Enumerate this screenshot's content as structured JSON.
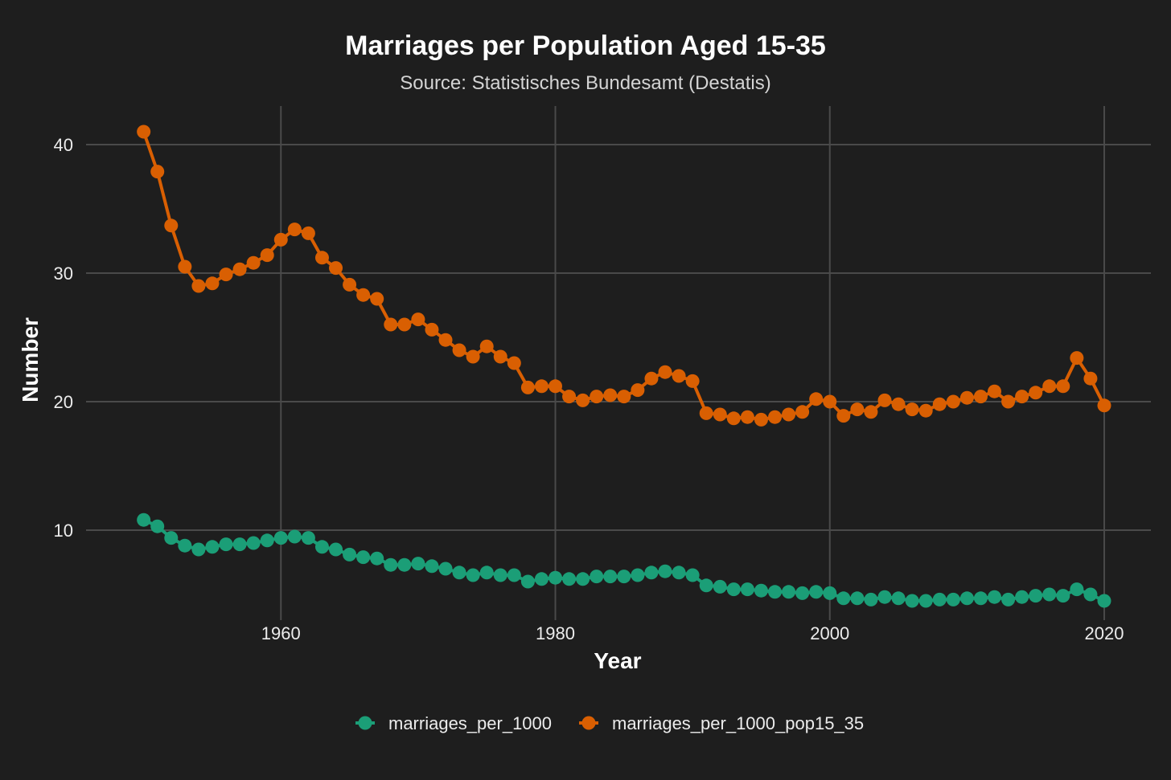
{
  "chart_data": {
    "type": "line",
    "title": "Marriages per Population Aged 15-35",
    "subtitle": "Source: Statistisches Bundesamt (Destatis)",
    "xlabel": "Year",
    "ylabel": "Number",
    "xlim": [
      1945.8,
      2023.4
    ],
    "ylim": [
      3,
      43
    ],
    "x_ticks": [
      1960,
      1980,
      2000,
      2020
    ],
    "y_ticks": [
      10,
      20,
      30,
      40
    ],
    "grid": true,
    "legend_position": "bottom",
    "x": [
      1950,
      1951,
      1952,
      1953,
      1954,
      1955,
      1956,
      1957,
      1958,
      1959,
      1960,
      1961,
      1962,
      1963,
      1964,
      1965,
      1966,
      1967,
      1968,
      1969,
      1970,
      1971,
      1972,
      1973,
      1974,
      1975,
      1976,
      1977,
      1978,
      1979,
      1980,
      1981,
      1982,
      1983,
      1984,
      1985,
      1986,
      1987,
      1988,
      1989,
      1990,
      1991,
      1992,
      1993,
      1994,
      1995,
      1996,
      1997,
      1998,
      1999,
      2000,
      2001,
      2002,
      2003,
      2004,
      2005,
      2006,
      2007,
      2008,
      2009,
      2010,
      2011,
      2012,
      2013,
      2014,
      2015,
      2016,
      2017,
      2018,
      2019,
      2020
    ],
    "series": [
      {
        "name": "marriages_per_1000",
        "color": "#1b9e77",
        "values": [
          10.8,
          10.3,
          9.4,
          8.8,
          8.5,
          8.7,
          8.9,
          8.9,
          9.0,
          9.2,
          9.4,
          9.5,
          9.4,
          8.7,
          8.5,
          8.1,
          7.9,
          7.8,
          7.3,
          7.3,
          7.4,
          7.2,
          7.0,
          6.7,
          6.5,
          6.7,
          6.5,
          6.5,
          6.0,
          6.2,
          6.3,
          6.2,
          6.2,
          6.4,
          6.4,
          6.4,
          6.5,
          6.7,
          6.8,
          6.7,
          6.5,
          5.7,
          5.6,
          5.4,
          5.4,
          5.3,
          5.2,
          5.2,
          5.1,
          5.2,
          5.1,
          4.7,
          4.7,
          4.6,
          4.8,
          4.7,
          4.5,
          4.5,
          4.6,
          4.6,
          4.7,
          4.7,
          4.8,
          4.6,
          4.8,
          4.9,
          5.0,
          4.9,
          5.4,
          5.0,
          4.5
        ]
      },
      {
        "name": "marriages_per_1000_pop15_35",
        "color": "#d95f02",
        "values": [
          41.0,
          37.9,
          33.7,
          30.5,
          29.0,
          29.2,
          29.9,
          30.3,
          30.8,
          31.4,
          32.6,
          33.4,
          33.1,
          31.2,
          30.4,
          29.1,
          28.3,
          28.0,
          26.0,
          26.0,
          26.4,
          25.6,
          24.8,
          24.0,
          23.5,
          24.3,
          23.5,
          23.0,
          21.1,
          21.2,
          21.2,
          20.4,
          20.1,
          20.4,
          20.5,
          20.4,
          20.9,
          21.8,
          22.3,
          22.0,
          21.6,
          19.1,
          19.0,
          18.7,
          18.8,
          18.6,
          18.8,
          19.0,
          19.2,
          20.2,
          20.0,
          18.9,
          19.4,
          19.2,
          20.1,
          19.8,
          19.4,
          19.3,
          19.8,
          20.0,
          20.3,
          20.4,
          20.8,
          20.0,
          20.4,
          20.7,
          21.2,
          21.2,
          23.4,
          21.8,
          19.7
        ]
      }
    ]
  }
}
